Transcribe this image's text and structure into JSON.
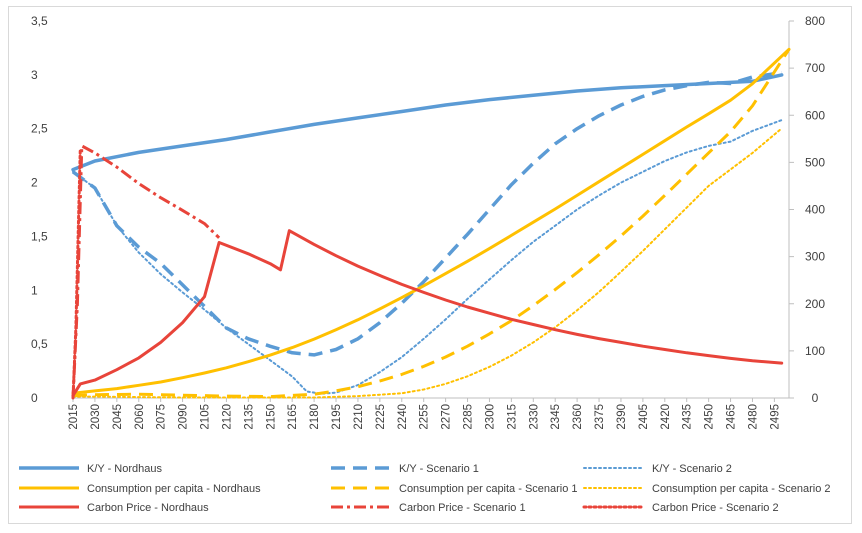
{
  "chart_data": {
    "type": "line",
    "title": "",
    "x_start": 2015,
    "x_end": 2505,
    "x_step": 15,
    "y_left": {
      "min": 0,
      "max": 3.5,
      "ticks": [
        "0",
        "0,5",
        "1",
        "1,5",
        "2",
        "2,5",
        "3",
        "3,5"
      ]
    },
    "y_right": {
      "min": 0,
      "max": 800,
      "ticks": [
        "0",
        "100",
        "200",
        "300",
        "400",
        "500",
        "600",
        "700",
        "800"
      ]
    },
    "x_tick_labels": [
      "2015",
      "2030",
      "2045",
      "2060",
      "2075",
      "2090",
      "2105",
      "2120",
      "2135",
      "2150",
      "2165",
      "2180",
      "2195",
      "2210",
      "2225",
      "2240",
      "2255",
      "2270",
      "2285",
      "2300",
      "2315",
      "2330",
      "2345",
      "2360",
      "2375",
      "2390",
      "2405",
      "2420",
      "2435",
      "2450",
      "2465",
      "2480",
      "2495"
    ],
    "grid": false,
    "legend_position": "bottom",
    "series": [
      {
        "name": "K/Y - Nordhaus",
        "axis": "left",
        "color": "#5b9bd5",
        "dash": "solid",
        "width": 3.5,
        "points": [
          [
            2015,
            2.12
          ],
          [
            2030,
            2.2
          ],
          [
            2060,
            2.28
          ],
          [
            2090,
            2.34
          ],
          [
            2120,
            2.4
          ],
          [
            2150,
            2.47
          ],
          [
            2180,
            2.54
          ],
          [
            2210,
            2.6
          ],
          [
            2240,
            2.66
          ],
          [
            2270,
            2.72
          ],
          [
            2300,
            2.77
          ],
          [
            2330,
            2.81
          ],
          [
            2360,
            2.85
          ],
          [
            2390,
            2.88
          ],
          [
            2420,
            2.9
          ],
          [
            2450,
            2.92
          ],
          [
            2480,
            2.94
          ],
          [
            2500,
            3.0
          ]
        ]
      },
      {
        "name": "K/Y - Scenario 1",
        "axis": "left",
        "color": "#5b9bd5",
        "dash": "long",
        "width": 3.5,
        "points": [
          [
            2015,
            2.1
          ],
          [
            2030,
            1.95
          ],
          [
            2045,
            1.6
          ],
          [
            2060,
            1.4
          ],
          [
            2075,
            1.25
          ],
          [
            2090,
            1.05
          ],
          [
            2105,
            0.85
          ],
          [
            2120,
            0.65
          ],
          [
            2135,
            0.55
          ],
          [
            2150,
            0.48
          ],
          [
            2165,
            0.42
          ],
          [
            2180,
            0.4
          ],
          [
            2195,
            0.45
          ],
          [
            2210,
            0.55
          ],
          [
            2225,
            0.7
          ],
          [
            2240,
            0.88
          ],
          [
            2255,
            1.08
          ],
          [
            2270,
            1.3
          ],
          [
            2285,
            1.52
          ],
          [
            2300,
            1.75
          ],
          [
            2315,
            1.98
          ],
          [
            2330,
            2.18
          ],
          [
            2345,
            2.36
          ],
          [
            2360,
            2.5
          ],
          [
            2375,
            2.62
          ],
          [
            2390,
            2.72
          ],
          [
            2405,
            2.8
          ],
          [
            2420,
            2.86
          ],
          [
            2435,
            2.9
          ],
          [
            2450,
            2.93
          ],
          [
            2465,
            2.92
          ],
          [
            2480,
            2.98
          ],
          [
            2500,
            3.02
          ]
        ]
      },
      {
        "name": "K/Y - Scenario 2",
        "axis": "left",
        "color": "#5b9bd5",
        "dash": "dot",
        "width": 2,
        "points": [
          [
            2015,
            2.1
          ],
          [
            2030,
            1.95
          ],
          [
            2045,
            1.6
          ],
          [
            2060,
            1.35
          ],
          [
            2075,
            1.15
          ],
          [
            2090,
            0.98
          ],
          [
            2105,
            0.82
          ],
          [
            2120,
            0.65
          ],
          [
            2135,
            0.5
          ],
          [
            2150,
            0.35
          ],
          [
            2165,
            0.2
          ],
          [
            2175,
            0.06
          ],
          [
            2185,
            0.04
          ],
          [
            2195,
            0.05
          ],
          [
            2210,
            0.12
          ],
          [
            2225,
            0.24
          ],
          [
            2240,
            0.38
          ],
          [
            2255,
            0.55
          ],
          [
            2270,
            0.73
          ],
          [
            2285,
            0.92
          ],
          [
            2300,
            1.1
          ],
          [
            2315,
            1.28
          ],
          [
            2330,
            1.45
          ],
          [
            2345,
            1.6
          ],
          [
            2360,
            1.75
          ],
          [
            2375,
            1.88
          ],
          [
            2390,
            2.0
          ],
          [
            2405,
            2.1
          ],
          [
            2420,
            2.2
          ],
          [
            2435,
            2.28
          ],
          [
            2450,
            2.34
          ],
          [
            2465,
            2.38
          ],
          [
            2480,
            2.48
          ],
          [
            2500,
            2.58
          ]
        ]
      },
      {
        "name": "Consumption per capita - Nordhaus",
        "axis": "right",
        "color": "#ffc000",
        "dash": "solid",
        "width": 3,
        "points": [
          [
            2015,
            10
          ],
          [
            2030,
            15
          ],
          [
            2045,
            20
          ],
          [
            2060,
            27
          ],
          [
            2075,
            34
          ],
          [
            2090,
            43
          ],
          [
            2105,
            53
          ],
          [
            2120,
            64
          ],
          [
            2135,
            77
          ],
          [
            2150,
            91
          ],
          [
            2165,
            107
          ],
          [
            2180,
            125
          ],
          [
            2195,
            145
          ],
          [
            2210,
            166
          ],
          [
            2225,
            189
          ],
          [
            2240,
            213
          ],
          [
            2255,
            238
          ],
          [
            2270,
            264
          ],
          [
            2285,
            290
          ],
          [
            2300,
            317
          ],
          [
            2315,
            345
          ],
          [
            2330,
            373
          ],
          [
            2345,
            401
          ],
          [
            2360,
            430
          ],
          [
            2375,
            459
          ],
          [
            2390,
            488
          ],
          [
            2405,
            517
          ],
          [
            2420,
            546
          ],
          [
            2435,
            575
          ],
          [
            2450,
            603
          ],
          [
            2465,
            632
          ],
          [
            2480,
            667
          ],
          [
            2505,
            740
          ]
        ]
      },
      {
        "name": "Consumption per capita - Scenario 1",
        "axis": "right",
        "color": "#ffc000",
        "dash": "long",
        "width": 3,
        "points": [
          [
            2015,
            5
          ],
          [
            2030,
            7
          ],
          [
            2060,
            8
          ],
          [
            2090,
            6
          ],
          [
            2120,
            4
          ],
          [
            2150,
            3
          ],
          [
            2180,
            8
          ],
          [
            2195,
            15
          ],
          [
            2210,
            24
          ],
          [
            2225,
            36
          ],
          [
            2240,
            50
          ],
          [
            2255,
            67
          ],
          [
            2270,
            87
          ],
          [
            2285,
            110
          ],
          [
            2300,
            136
          ],
          [
            2315,
            164
          ],
          [
            2330,
            196
          ],
          [
            2345,
            230
          ],
          [
            2360,
            266
          ],
          [
            2375,
            304
          ],
          [
            2390,
            344
          ],
          [
            2405,
            386
          ],
          [
            2420,
            430
          ],
          [
            2435,
            475
          ],
          [
            2450,
            520
          ],
          [
            2465,
            565
          ],
          [
            2480,
            620
          ],
          [
            2505,
            740
          ]
        ]
      },
      {
        "name": "Consumption per capita - Scenario 2",
        "axis": "right",
        "color": "#ffc000",
        "dash": "dot",
        "width": 2,
        "points": [
          [
            2015,
            3
          ],
          [
            2030,
            3
          ],
          [
            2060,
            2
          ],
          [
            2090,
            1
          ],
          [
            2120,
            1
          ],
          [
            2150,
            1
          ],
          [
            2180,
            1
          ],
          [
            2210,
            4
          ],
          [
            2240,
            10
          ],
          [
            2255,
            18
          ],
          [
            2270,
            30
          ],
          [
            2285,
            46
          ],
          [
            2300,
            66
          ],
          [
            2315,
            90
          ],
          [
            2330,
            118
          ],
          [
            2345,
            150
          ],
          [
            2360,
            186
          ],
          [
            2375,
            225
          ],
          [
            2390,
            268
          ],
          [
            2405,
            312
          ],
          [
            2420,
            358
          ],
          [
            2435,
            404
          ],
          [
            2450,
            450
          ],
          [
            2465,
            485
          ],
          [
            2480,
            520
          ],
          [
            2500,
            572
          ]
        ]
      },
      {
        "name": "Carbon Price - Nordhaus",
        "axis": "right",
        "color": "#e8443a",
        "dash": "solid",
        "width": 3,
        "points": [
          [
            2015,
            5
          ],
          [
            2020,
            30
          ],
          [
            2030,
            38
          ],
          [
            2045,
            60
          ],
          [
            2060,
            85
          ],
          [
            2075,
            118
          ],
          [
            2090,
            160
          ],
          [
            2105,
            215
          ],
          [
            2115,
            330
          ],
          [
            2135,
            306
          ],
          [
            2150,
            285
          ],
          [
            2157,
            272
          ],
          [
            2163,
            355
          ],
          [
            2180,
            326
          ],
          [
            2195,
            302
          ],
          [
            2210,
            280
          ],
          [
            2225,
            260
          ],
          [
            2240,
            241
          ],
          [
            2255,
            224
          ],
          [
            2270,
            208
          ],
          [
            2285,
            193
          ],
          [
            2300,
            180
          ],
          [
            2315,
            167
          ],
          [
            2330,
            156
          ],
          [
            2345,
            145
          ],
          [
            2360,
            135
          ],
          [
            2375,
            126
          ],
          [
            2390,
            118
          ],
          [
            2405,
            110
          ],
          [
            2420,
            103
          ],
          [
            2435,
            96
          ],
          [
            2450,
            90
          ],
          [
            2465,
            84
          ],
          [
            2480,
            79
          ],
          [
            2500,
            74
          ]
        ]
      },
      {
        "name": "Carbon Price - Scenario 1",
        "axis": "right",
        "color": "#e8443a",
        "dash": "dashdot",
        "width": 3,
        "points": [
          [
            2015,
            0
          ],
          [
            2018,
            200
          ],
          [
            2021,
            535
          ],
          [
            2030,
            520
          ],
          [
            2045,
            490
          ],
          [
            2060,
            455
          ],
          [
            2075,
            425
          ],
          [
            2090,
            398
          ],
          [
            2105,
            370
          ],
          [
            2115,
            340
          ]
        ]
      },
      {
        "name": "Carbon Price - Scenario 2",
        "axis": "right",
        "color": "#e8443a",
        "dash": "dot",
        "width": 3,
        "points": [
          [
            2015,
            0
          ],
          [
            2017,
            150
          ],
          [
            2020,
            530
          ]
        ]
      }
    ]
  }
}
